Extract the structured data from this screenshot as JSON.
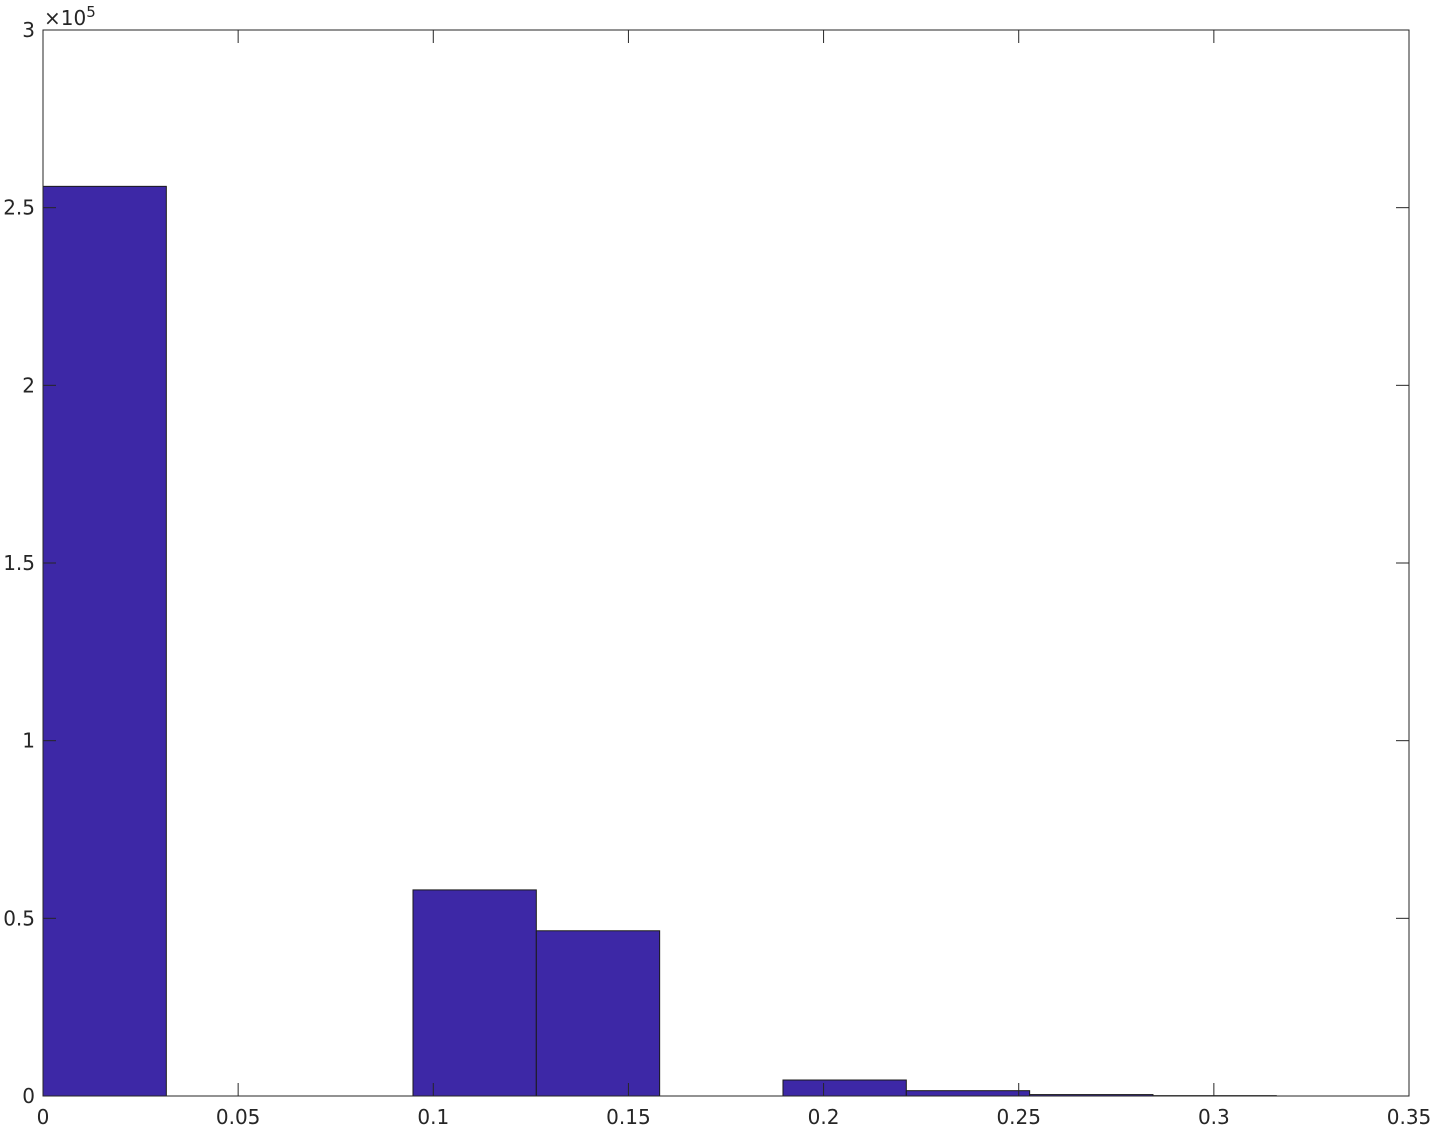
{
  "chart_data": {
    "type": "bar",
    "title": "",
    "xlabel": "",
    "ylabel": "",
    "xlim": [
      0,
      0.35
    ],
    "ylim": [
      0,
      3
    ],
    "y_multiplier": "×10",
    "y_multiplier_exponent": "5",
    "x_ticks": [
      "0",
      "0.05",
      "0.1",
      "0.15",
      "0.2",
      "0.25",
      "0.3",
      "0.35"
    ],
    "y_ticks": [
      "0",
      "0.5",
      "1",
      "1.5",
      "2",
      "2.5",
      "3"
    ],
    "x_tick_values": [
      0,
      0.05,
      0.1,
      0.15,
      0.2,
      0.25,
      0.3,
      0.35
    ],
    "y_tick_values": [
      0,
      0.5,
      1,
      1.5,
      2,
      2.5,
      3
    ],
    "bins": [
      {
        "x0": 0.0,
        "x1": 0.0316,
        "value": 2.56
      },
      {
        "x0": 0.0316,
        "x1": 0.0632,
        "value": 0
      },
      {
        "x0": 0.0632,
        "x1": 0.0948,
        "value": 0
      },
      {
        "x0": 0.0948,
        "x1": 0.1264,
        "value": 0.58
      },
      {
        "x0": 0.1264,
        "x1": 0.158,
        "value": 0.465
      },
      {
        "x0": 0.158,
        "x1": 0.1896,
        "value": 0
      },
      {
        "x0": 0.1896,
        "x1": 0.2212,
        "value": 0.045
      },
      {
        "x0": 0.2212,
        "x1": 0.2528,
        "value": 0.015
      },
      {
        "x0": 0.2528,
        "x1": 0.2844,
        "value": 0.004
      },
      {
        "x0": 0.2844,
        "x1": 0.316,
        "value": 0.001
      }
    ],
    "grid": false,
    "colors": {
      "bar_fill": "#3D28A6",
      "bar_edge": "#1a1a1a",
      "axes": "#262626"
    }
  }
}
